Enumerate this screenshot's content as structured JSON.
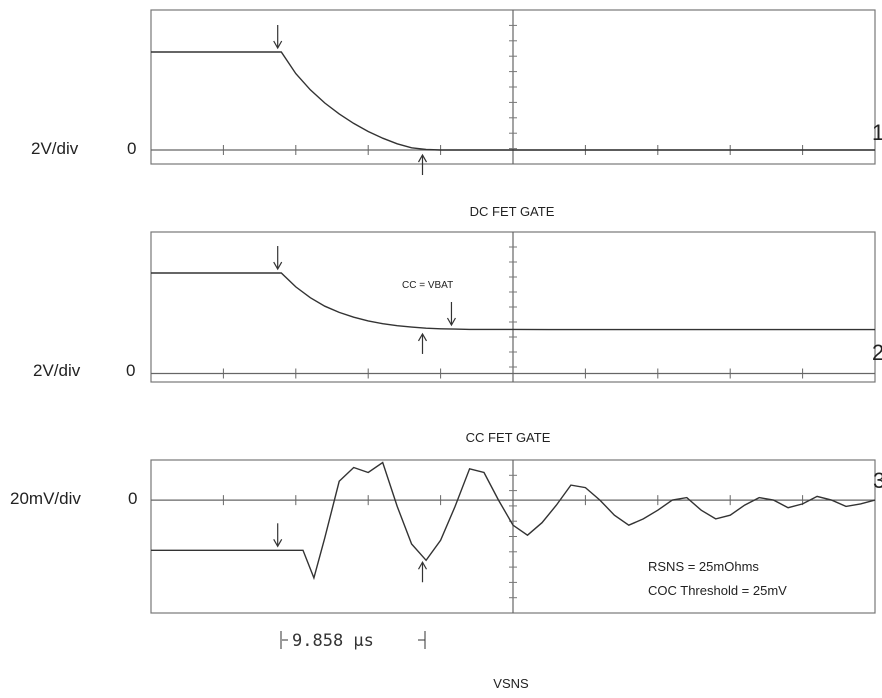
{
  "chart_data": [
    {
      "type": "line",
      "title": "DC FET GATE",
      "ylabel": "2V/div",
      "zero_label": "0",
      "channel": "1",
      "x": [
        0,
        0.4,
        0.6,
        0.8,
        1.0,
        1.2,
        1.4,
        1.6,
        1.8,
        2.0,
        2.2,
        2.4,
        2.6,
        2.8,
        3.0,
        3.2,
        3.4,
        3.6,
        3.8,
        4.0,
        4.2,
        4.4,
        4.6,
        4.8,
        5.0,
        5.5,
        6.0,
        6.5,
        7.0,
        7.5,
        8.0,
        8.5,
        9.0,
        9.5,
        10.0
      ],
      "values": [
        3.5,
        3.5,
        3.5,
        3.5,
        3.5,
        3.5,
        3.5,
        3.5,
        3.5,
        2.73,
        2.15,
        1.68,
        1.29,
        0.95,
        0.66,
        0.42,
        0.22,
        0.08,
        0.02,
        0.0,
        0.0,
        0.0,
        0.0,
        0.0,
        0.0,
        0.0,
        0.0,
        0.0,
        0.0,
        0.0,
        0.0,
        0.0,
        0.0,
        0.0,
        0.0
      ],
      "xlim": [
        0,
        10
      ],
      "ylim": [
        -0.5,
        5
      ],
      "markers": [
        {
          "x": 1.75,
          "direction": "down"
        },
        {
          "x": 3.75,
          "direction": "up"
        }
      ]
    },
    {
      "type": "line",
      "title": "CC FET GATE",
      "ylabel": "2V/div",
      "zero_label": "0",
      "channel": "2",
      "annotation": "CC = VBAT",
      "x": [
        0,
        0.4,
        0.8,
        1.2,
        1.6,
        1.8,
        2.0,
        2.2,
        2.4,
        2.6,
        2.8,
        3.0,
        3.2,
        3.4,
        3.6,
        3.8,
        4.0,
        4.2,
        4.4,
        4.6,
        4.8,
        5.0,
        5.5,
        6.0,
        6.5,
        7.0,
        7.5,
        8.0,
        8.5,
        9.0,
        9.5,
        10.0
      ],
      "values": [
        3.55,
        3.55,
        3.55,
        3.55,
        3.55,
        3.55,
        3.06,
        2.68,
        2.38,
        2.16,
        1.99,
        1.86,
        1.76,
        1.69,
        1.64,
        1.6,
        1.58,
        1.57,
        1.56,
        1.56,
        1.56,
        1.56,
        1.55,
        1.55,
        1.55,
        1.55,
        1.55,
        1.55,
        1.55,
        1.55,
        1.55,
        1.55
      ],
      "xlim": [
        0,
        10
      ],
      "ylim": [
        -0.3,
        5
      ],
      "markers": [
        {
          "x": 1.75,
          "direction": "down"
        },
        {
          "x": 3.75,
          "direction": "up"
        },
        {
          "x": 4.15,
          "direction": "down"
        }
      ]
    },
    {
      "type": "line",
      "title": "VSNS",
      "ylabel": "20mV/div",
      "zero_label": "0",
      "channel": "3",
      "annotations": [
        "RSNS = 25mOhms",
        "COC Threshold = 25mV"
      ],
      "time_cursor": "9.858 µs",
      "x": [
        0,
        0.5,
        1.0,
        1.5,
        2.1,
        2.25,
        2.4,
        2.6,
        2.8,
        3.0,
        3.2,
        3.4,
        3.6,
        3.8,
        4.0,
        4.2,
        4.4,
        4.6,
        4.8,
        5.0,
        5.2,
        5.4,
        5.6,
        5.8,
        6.0,
        6.2,
        6.4,
        6.6,
        6.8,
        7.0,
        7.2,
        7.4,
        7.6,
        7.8,
        8.0,
        8.2,
        8.4,
        8.6,
        8.8,
        9.0,
        9.2,
        9.4,
        9.6,
        9.8,
        10.0
      ],
      "values": [
        -40,
        -40,
        -40,
        -40,
        -40,
        -62,
        -30,
        15,
        26,
        22,
        30,
        -5,
        -35,
        -48,
        -32,
        -5,
        25,
        22,
        0,
        -20,
        -28,
        -18,
        -4,
        12,
        10,
        0,
        -12,
        -20,
        -15,
        -8,
        0,
        2,
        -8,
        -15,
        -12,
        -4,
        2,
        0,
        -6,
        -3,
        3,
        0,
        -5,
        -3,
        0
      ],
      "xlim": [
        0,
        10
      ],
      "ylim": [
        -90,
        32
      ],
      "markers": [
        {
          "x": 1.75,
          "direction": "down"
        },
        {
          "x": 3.75,
          "direction": "up"
        }
      ]
    }
  ]
}
